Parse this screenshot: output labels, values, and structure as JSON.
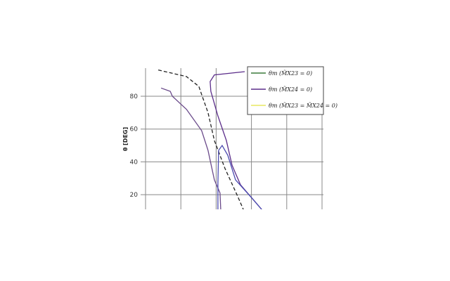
{
  "chart_data": {
    "type": "line",
    "title": "",
    "xlabel": "",
    "ylabel": "θ [DEG]",
    "ylim": [
      11,
      97
    ],
    "xlim": [
      0,
      5
    ],
    "yticks": [
      20,
      40,
      60,
      80
    ],
    "ytick_labels": [
      "20",
      "40",
      "60",
      "80"
    ],
    "grid": true,
    "legend_position": "top-right",
    "legend": [
      {
        "label": "θm (M̃X23 = 0)",
        "color": "#3a7a3a"
      },
      {
        "label": "θm (M̃X24 = 0)",
        "color": "#5b2d8a"
      },
      {
        "label": "θm (M̃X23 = M̃X24 = 0)",
        "color": "#e8e860"
      }
    ],
    "series": [
      {
        "style": "dashed",
        "color": "#222222",
        "x": [
          0.36,
          1.16,
          1.51,
          1.59,
          1.77,
          1.95,
          2.25,
          2.61,
          2.77
        ],
        "y": [
          96,
          92,
          86,
          81,
          70,
          53,
          36,
          19,
          11
        ]
      },
      {
        "style": "solid",
        "color": "#6a4a8a",
        "x": [
          0.44,
          0.7,
          0.76,
          1.16,
          1.59,
          1.77,
          1.95,
          2.11,
          2.13
        ],
        "y": [
          85,
          83,
          80,
          72,
          59,
          47,
          29,
          21,
          11
        ]
      },
      {
        "style": "solid",
        "color": "#5b2d8a",
        "x": [
          2.81,
          1.95,
          1.83,
          1.85,
          2.05,
          2.29,
          2.45,
          2.69,
          3.29
        ],
        "y": [
          95,
          93,
          89,
          83,
          68,
          53,
          38,
          26,
          11
        ]
      },
      {
        "style": "solid",
        "color": "#4a4ab0",
        "x": [
          2.05,
          2.05,
          2.07,
          2.17,
          2.33,
          2.55,
          3.05,
          3.29
        ],
        "y": [
          11,
          27,
          47,
          50,
          44,
          29,
          17,
          11
        ]
      }
    ]
  }
}
